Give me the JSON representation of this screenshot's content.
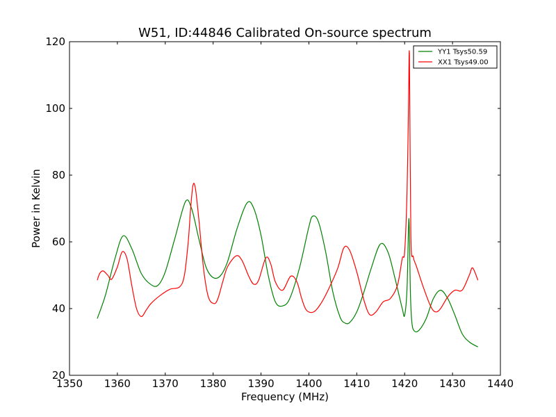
{
  "chart_data": {
    "type": "line",
    "title": "W51, ID:44846 Calibrated On-source spectrum",
    "xlabel": "Frequency (MHz)",
    "ylabel": "Power in Kelvin",
    "xlim": [
      1350,
      1440
    ],
    "ylim": [
      20,
      120
    ],
    "xticks": [
      1350,
      1360,
      1370,
      1380,
      1390,
      1400,
      1410,
      1420,
      1430,
      1440
    ],
    "yticks": [
      20,
      40,
      60,
      80,
      100,
      120
    ],
    "grid": false,
    "legend_position": "top-right",
    "series": [
      {
        "name": "YY1 Tsys50.59",
        "color": "#008000",
        "x": [
          1355.8,
          1357.5,
          1359.5,
          1361.2,
          1363.0,
          1365.0,
          1367.0,
          1368.5,
          1370.0,
          1372.0,
          1374.2,
          1375.5,
          1377.0,
          1378.5,
          1380.0,
          1381.5,
          1383.0,
          1385.0,
          1387.1,
          1388.5,
          1390.0,
          1391.5,
          1393.0,
          1394.5,
          1396.0,
          1398.0,
          1400.0,
          1400.8,
          1402.0,
          1403.5,
          1405.0,
          1406.5,
          1407.5,
          1408.5,
          1410.0,
          1411.5,
          1413.0,
          1414.9,
          1416.5,
          1418.0,
          1419.5,
          1420.0,
          1420.5,
          1420.9,
          1421.2,
          1421.5,
          1422.0,
          1423.0,
          1424.5,
          1426.0,
          1427.5,
          1429.0,
          1430.5,
          1432.0,
          1433.5,
          1435.3
        ],
        "values": [
          37.0,
          44.0,
          55.0,
          61.8,
          58.0,
          50.5,
          47.2,
          47.0,
          51.0,
          61.0,
          72.0,
          70.0,
          61.0,
          52.5,
          49.3,
          49.8,
          54.0,
          64.0,
          71.7,
          70.0,
          62.0,
          50.0,
          42.0,
          40.8,
          43.0,
          52.0,
          64.5,
          67.7,
          66.0,
          57.0,
          45.0,
          37.5,
          35.7,
          35.8,
          39.0,
          45.0,
          52.0,
          59.3,
          57.0,
          49.0,
          40.0,
          38.0,
          46.0,
          67.0,
          45.0,
          36.0,
          33.3,
          33.5,
          37.0,
          43.0,
          45.5,
          43.0,
          38.0,
          32.5,
          30.0,
          28.5
        ]
      },
      {
        "name": "XX1 Tsys49.00",
        "color": "#ff0000",
        "x": [
          1355.8,
          1356.3,
          1357.0,
          1358.0,
          1358.8,
          1360.0,
          1361.0,
          1362.0,
          1363.0,
          1364.0,
          1365.0,
          1366.0,
          1367.0,
          1369.0,
          1371.0,
          1373.0,
          1374.0,
          1374.8,
          1375.3,
          1375.8,
          1376.3,
          1377.0,
          1378.0,
          1379.0,
          1380.2,
          1381.0,
          1382.0,
          1383.0,
          1384.8,
          1386.0,
          1387.5,
          1388.5,
          1389.5,
          1391.0,
          1392.0,
          1393.0,
          1394.5,
          1396.2,
          1397.5,
          1398.5,
          1399.5,
          1401.0,
          1402.5,
          1404.0,
          1406.0,
          1407.3,
          1408.5,
          1410.0,
          1411.5,
          1412.7,
          1414.0,
          1415.5,
          1417.0,
          1418.5,
          1419.5,
          1420.0,
          1420.5,
          1420.8,
          1421.0,
          1421.3,
          1421.8,
          1422.5,
          1424.0,
          1425.5,
          1426.5,
          1427.5,
          1429.0,
          1430.5,
          1432.0,
          1433.5,
          1434.2,
          1435.3
        ],
        "values": [
          48.5,
          50.5,
          51.3,
          50.0,
          48.8,
          52.5,
          57.0,
          55.0,
          47.0,
          40.0,
          37.6,
          39.5,
          41.5,
          44.0,
          45.8,
          46.5,
          50.0,
          60.0,
          70.0,
          77.0,
          76.0,
          67.0,
          52.0,
          43.5,
          41.5,
          43.0,
          48.0,
          52.5,
          55.8,
          54.5,
          49.5,
          47.3,
          48.5,
          55.2,
          53.5,
          48.0,
          45.5,
          49.7,
          48.0,
          43.0,
          39.5,
          39.0,
          41.5,
          45.5,
          52.0,
          58.2,
          57.5,
          51.0,
          42.5,
          38.2,
          39.0,
          42.0,
          43.0,
          47.0,
          55.0,
          57.0,
          75.0,
          100.0,
          115.8,
          62.0,
          55.5,
          52.5,
          46.0,
          40.5,
          39.0,
          40.0,
          43.5,
          45.5,
          45.5,
          50.0,
          52.2,
          48.5
        ]
      }
    ]
  }
}
